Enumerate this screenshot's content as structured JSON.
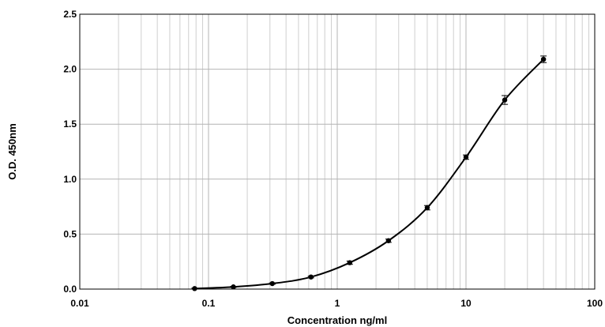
{
  "chart_data": {
    "type": "scatter",
    "title": "",
    "xlabel": "Concentration ng/ml",
    "ylabel": "O.D. 450nm",
    "x_scale": "log",
    "xlim": [
      0.01,
      100
    ],
    "ylim": [
      0,
      2.5
    ],
    "x_ticks": [
      "0.01",
      "0.1",
      "1",
      "10",
      "100"
    ],
    "y_ticks": [
      "0.0",
      "0.5",
      "1.0",
      "1.5",
      "2.0",
      "2.5"
    ],
    "grid": true,
    "legend": "none",
    "series": [
      {
        "x": [
          0.078,
          0.156,
          0.313,
          0.625,
          1.25,
          2.5,
          5,
          10,
          20,
          40
        ],
        "y": [
          0.005,
          0.02,
          0.05,
          0.11,
          0.24,
          0.44,
          0.74,
          1.2,
          1.72,
          2.09
        ],
        "err": [
          0.004,
          0.005,
          0.006,
          0.008,
          0.015,
          0.015,
          0.02,
          0.02,
          0.04,
          0.03
        ],
        "color": "#000000",
        "fit": "4-parameter logistic"
      }
    ]
  }
}
